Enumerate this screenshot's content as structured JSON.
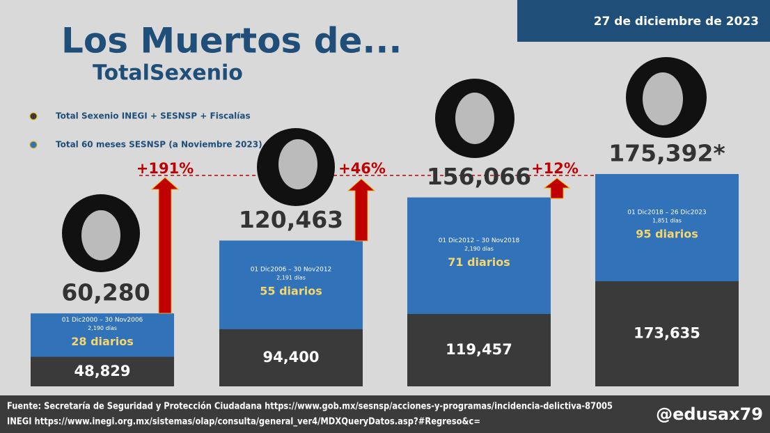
{
  "chart_data": {
    "type": "bar",
    "title": "Los Muertos de...",
    "subtitle": "TotalSexenio",
    "date": "27 de diciembre de 2023",
    "series": [
      {
        "name": "Total Sexenio INEGI + SESNSP + Fiscalías",
        "color": "#3a3a3a",
        "values": [
          48829,
          94400,
          119457,
          173635
        ],
        "value_labels": [
          "48,829",
          "94,400",
          "119,457",
          "173,635"
        ]
      },
      {
        "name": "Total 60 meses SESNSP (a Noviembre 2023)",
        "color": "#3272b8",
        "values": [
          60280,
          120463,
          156066,
          175392
        ],
        "value_labels": [
          "60,280",
          "120,463",
          "156,066",
          "175,392*"
        ]
      }
    ],
    "periods": [
      "01 Dic2000 – 30 Nov2006",
      "01 Dic2006 – 30 Nov2012",
      "01 Dic2012 – 30 Nov2018",
      "01 Dic2018 – 26 Dic2023"
    ],
    "days": [
      "2,190 días",
      "2,191 días",
      "2,190 días",
      "1,851 días"
    ],
    "daily": [
      "28 diarios",
      "55 diarios",
      "71 diarios",
      "95 diarios"
    ],
    "changes": [
      "+191%",
      "+46%",
      "+12%"
    ],
    "source": [
      "Fuente: Secretaría de Seguridad y Protección Ciudadana https://www.gob.mx/sesnsp/acciones-y-programas/incidencia-delictiva-87005",
      "INEGI https://www.inegi.org.mx/sistemas/olap/consulta/general_ver4/MDXQueryDatos.asp?#Regreso&c="
    ],
    "handle": "@edusax79"
  }
}
